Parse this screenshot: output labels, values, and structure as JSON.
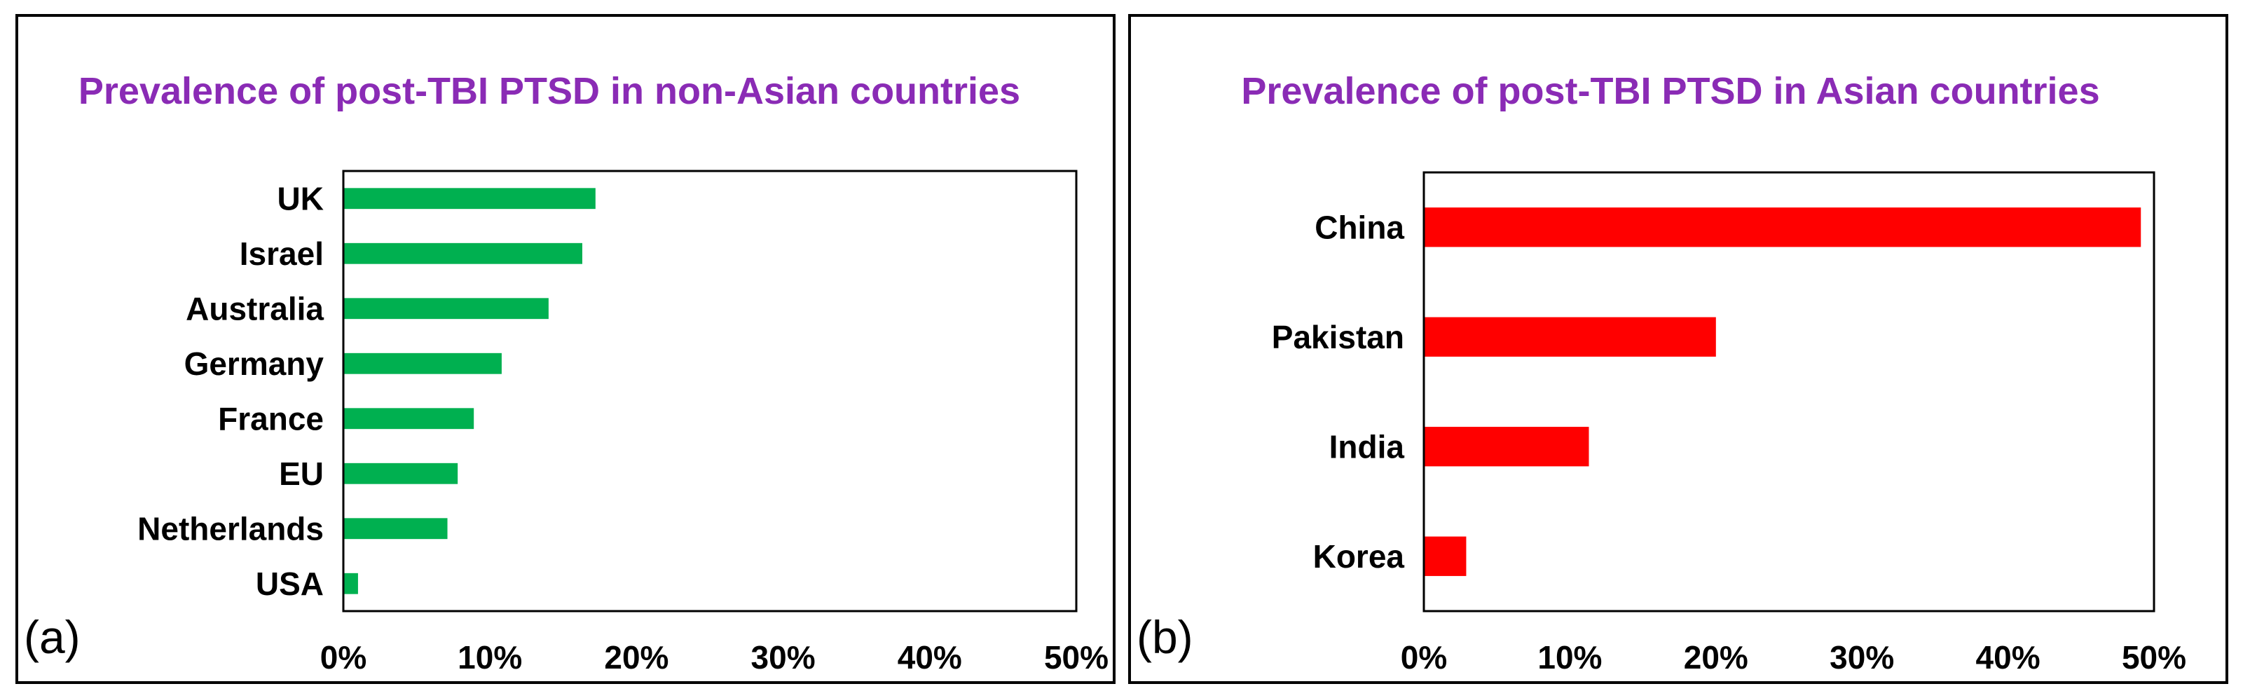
{
  "chart_data": [
    {
      "type": "bar",
      "orientation": "horizontal",
      "panel_label": "(a)",
      "title": "Prevalence of post-TBI PTSD in non-Asian countries",
      "categories": [
        "UK",
        "Israel",
        "Australia",
        "Germany",
        "France",
        "EU",
        "Netherlands",
        "USA"
      ],
      "values": [
        17.2,
        16.3,
        14.0,
        10.8,
        8.9,
        7.8,
        7.1,
        1.0
      ],
      "value_unit": "%",
      "xlim": [
        0,
        50
      ],
      "x_ticks": [
        "0%",
        "10%",
        "20%",
        "30%",
        "40%",
        "50%"
      ],
      "bar_color": "#00b050",
      "grid": false,
      "legend": "none"
    },
    {
      "type": "bar",
      "orientation": "horizontal",
      "panel_label": "(b)",
      "title": "Prevalence of post-TBI PTSD in Asian countries",
      "categories": [
        "China",
        "Pakistan",
        "India",
        "Korea"
      ],
      "values": [
        49.1,
        20.0,
        11.3,
        2.9
      ],
      "value_unit": "%",
      "xlim": [
        0,
        50
      ],
      "x_ticks": [
        "0%",
        "10%",
        "20%",
        "30%",
        "40%",
        "50%"
      ],
      "bar_color": "#ff0000",
      "grid": false,
      "legend": "none"
    }
  ]
}
